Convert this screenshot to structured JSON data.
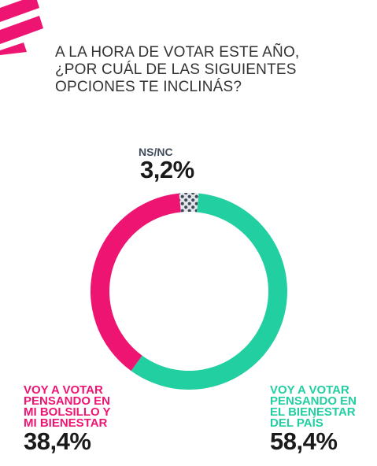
{
  "title_lines": [
    "A LA HORA DE VOTAR ESTE AÑO,",
    "¿POR CUÁL DE LAS SIGUIENTES",
    "OPCIONES TE INCLINÁS?"
  ],
  "colors": {
    "accent": "#ee1572",
    "teal": "#21cfa0",
    "nsnc_fill": "#e4e6ea",
    "nsnc_dots": "#3f4b5b"
  },
  "chart_data": {
    "type": "donut",
    "title": "A LA HORA DE VOTAR ESTE AÑO, ¿POR CUÁL DE LAS SIGUIENTES OPCIONES TE INCLINÁS?",
    "segments": [
      {
        "label": "NS/NC",
        "label_lines": [
          "NS/NC"
        ],
        "value": 3.2,
        "display": "3,2%",
        "color": "#e4e6ea",
        "pattern": "dots"
      },
      {
        "label": "VOY A VOTAR PENSANDO EN EL BIENESTAR DEL PAÍS",
        "label_lines": [
          "VOY A VOTAR",
          "PENSANDO EN",
          "EL BIENESTAR",
          "DEL PAÍS"
        ],
        "value": 58.4,
        "display": "58,4%",
        "color": "#21cfa0"
      },
      {
        "label": "VOY A VOTAR PENSANDO EN MI BOLSILLO Y MI BIENESTAR",
        "label_lines": [
          "VOY A VOTAR",
          "PENSANDO EN",
          "MI BOLSILLO Y",
          "MI BIENESTAR"
        ],
        "value": 38.4,
        "display": "38,4%",
        "color": "#ee1572"
      }
    ]
  }
}
